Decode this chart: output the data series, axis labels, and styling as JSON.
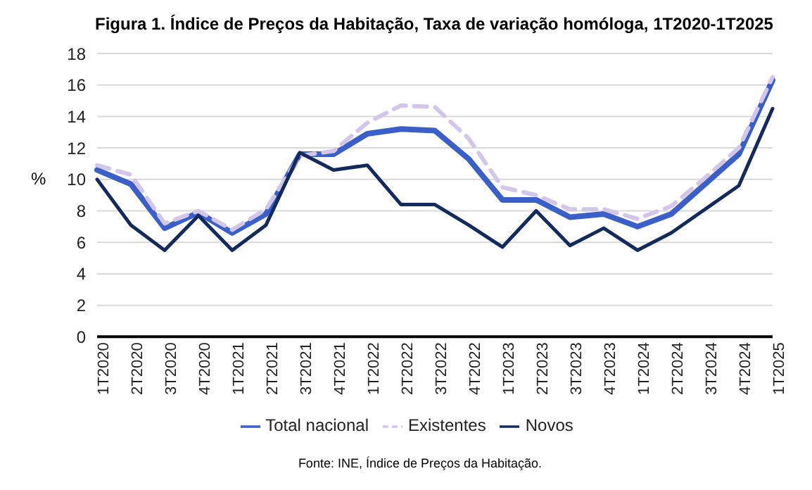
{
  "chart_data": {
    "type": "line",
    "title": "Figura 1. Índice de Preços da Habitação, Taxa de variação homóloga, 1T2020-1T2025",
    "ylabel": "%",
    "categories": [
      "1T2020",
      "2T2020",
      "3T2020",
      "4T2020",
      "1T2021",
      "2T2021",
      "3T2021",
      "4T2021",
      "1T2022",
      "2T2022",
      "3T2022",
      "4T2022",
      "1T2023",
      "2T2023",
      "3T2023",
      "4T2023",
      "1T2024",
      "2T2024",
      "3T2024",
      "4T2024",
      "1T2025"
    ],
    "series": [
      {
        "name": "Total nacional",
        "color": "#3a5fc8",
        "line_style": "solid",
        "values": [
          10.6,
          9.7,
          6.9,
          7.9,
          6.6,
          7.8,
          11.6,
          11.6,
          12.9,
          13.2,
          13.1,
          11.3,
          8.7,
          8.7,
          7.6,
          7.8,
          7.0,
          7.8,
          9.7,
          11.6,
          16.3
        ]
      },
      {
        "name": "Existentes",
        "color": "#d2c6ea",
        "line_style": "dashed",
        "values": [
          10.9,
          10.3,
          7.2,
          8.0,
          6.8,
          8.1,
          11.5,
          11.8,
          13.6,
          14.7,
          14.6,
          12.6,
          9.5,
          9.0,
          8.1,
          8.1,
          7.5,
          8.3,
          10.1,
          12.0,
          16.5
        ]
      },
      {
        "name": "Novos",
        "color": "#142a5c",
        "line_style": "solid",
        "values": [
          10.0,
          7.1,
          5.5,
          7.7,
          5.5,
          7.1,
          11.7,
          10.6,
          10.9,
          8.4,
          8.4,
          7.1,
          5.7,
          8.0,
          5.8,
          6.9,
          5.5,
          6.6,
          8.1,
          9.6,
          14.5
        ]
      }
    ],
    "ylim": [
      0,
      18
    ],
    "yticks": [
      0,
      2,
      4,
      6,
      8,
      10,
      12,
      14,
      16,
      18
    ],
    "grid": "y",
    "legend": "bottom",
    "marker": "none",
    "annotations": [
      "Fonte: INE, Índice de Preços da Habitação."
    ]
  }
}
